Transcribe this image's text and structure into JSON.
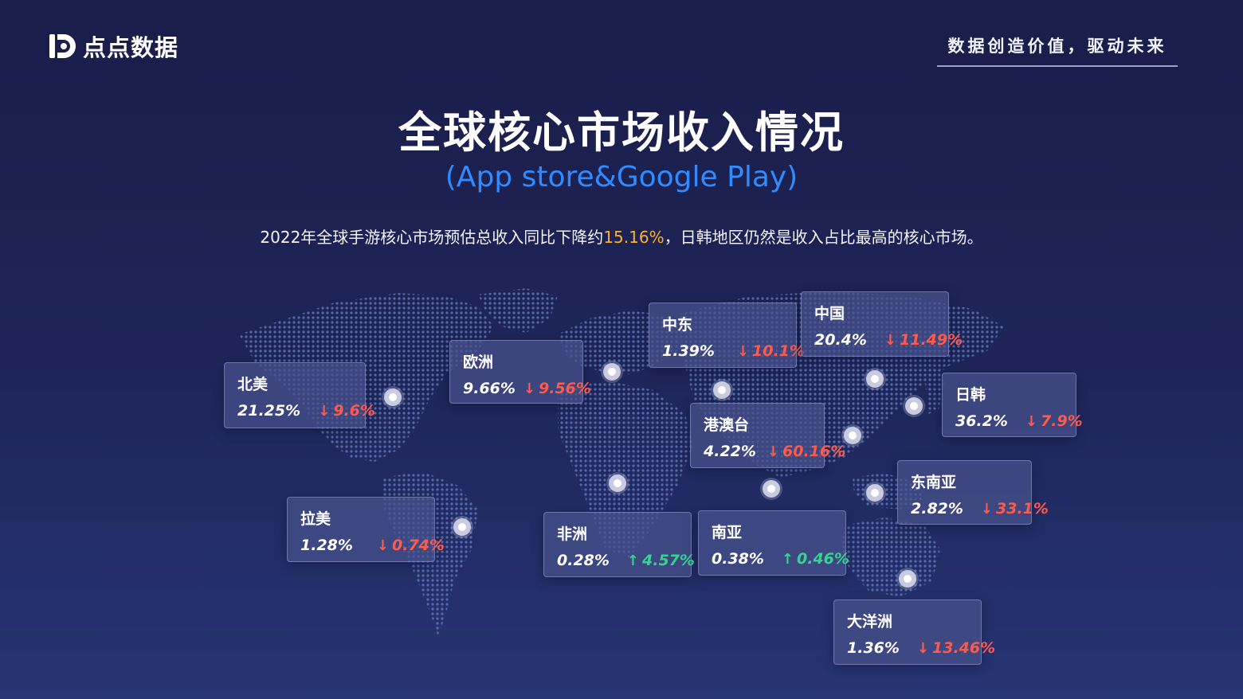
{
  "brand": {
    "name": "点点数据",
    "slogan": "数据创造价值，驱动未来"
  },
  "title": "全球核心市场收入情况",
  "subtitle": "(App store&Google Play)",
  "description": {
    "before": "2022年全球手游核心市场预估总收入同比下降约",
    "highlight": "15.16%",
    "after": "，日韩地区仍然是收入占比最高的核心市场。"
  },
  "colors": {
    "background": "#1e2559",
    "accent_blue": "#2f8bff",
    "highlight": "#ffb02e",
    "down": "#ff5a4a",
    "up": "#35d48f"
  },
  "regions": [
    {
      "id": "north-america",
      "name": "北美",
      "share": "21.25%",
      "change": "9.6%",
      "direction": "down",
      "arrow_icon": "arrow-down-icon"
    },
    {
      "id": "europe",
      "name": "欧洲",
      "share": "9.66%",
      "change": "9.56%",
      "direction": "down",
      "arrow_icon": "arrow-down-icon"
    },
    {
      "id": "middle-east",
      "name": "中东",
      "share": "1.39%",
      "change": "10.1%",
      "direction": "down",
      "arrow_icon": "arrow-down-icon"
    },
    {
      "id": "china",
      "name": "中国",
      "share": "20.4%",
      "change": "11.49%",
      "direction": "down",
      "arrow_icon": "arrow-down-icon"
    },
    {
      "id": "japan-korea",
      "name": "日韩",
      "share": "36.2%",
      "change": "7.9%",
      "direction": "down",
      "arrow_icon": "arrow-down-icon"
    },
    {
      "id": "hk-macau-taiwan",
      "name": "港澳台",
      "share": "4.22%",
      "change": "60.16%",
      "direction": "down",
      "arrow_icon": "arrow-down-icon"
    },
    {
      "id": "southeast-asia",
      "name": "东南亚",
      "share": "2.82%",
      "change": "33.1%",
      "direction": "down",
      "arrow_icon": "arrow-down-icon"
    },
    {
      "id": "latin-america",
      "name": "拉美",
      "share": "1.28%",
      "change": "0.74%",
      "direction": "down",
      "arrow_icon": "arrow-down-icon"
    },
    {
      "id": "africa",
      "name": "非洲",
      "share": "0.28%",
      "change": "4.57%",
      "direction": "up",
      "arrow_icon": "arrow-up-icon"
    },
    {
      "id": "south-asia",
      "name": "南亚",
      "share": "0.38%",
      "change": "0.46%",
      "direction": "up",
      "arrow_icon": "arrow-up-icon"
    },
    {
      "id": "oceania",
      "name": "大洋洲",
      "share": "1.36%",
      "change": "13.46%",
      "direction": "down",
      "arrow_icon": "arrow-down-icon"
    }
  ]
}
